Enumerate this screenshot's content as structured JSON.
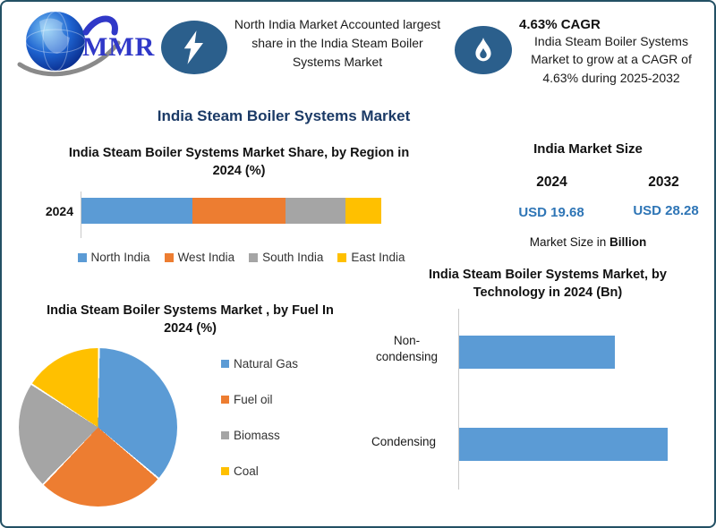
{
  "header": {
    "logo_text": "MMR",
    "highlight1": {
      "icon": "lightning-icon",
      "text": "North India Market Accounted largest share in the India Steam Boiler Systems Market"
    },
    "highlight2": {
      "icon": "flame-icon",
      "title": "4.63% CAGR",
      "text": "India Steam Boiler Systems Market to grow at a CAGR of 4.63% during 2025-2032"
    }
  },
  "main_title": "India Steam Boiler Systems Market",
  "market_size": {
    "title": "India Market Size",
    "col1": {
      "year": "2024",
      "value": "USD 19.68"
    },
    "col2": {
      "year": "2032",
      "value": "USD 28.28"
    },
    "caption_prefix": "Market Size in ",
    "caption_bold": "Billion"
  },
  "colors": {
    "series": [
      "#5B9BD5",
      "#ED7D31",
      "#A5A5A5",
      "#FFC000"
    ],
    "badge_blue": "#2B5F8C",
    "value_blue": "#2E75B6",
    "title_navy": "#1B3A66",
    "border": "#235064",
    "logo_blue": "#3038C8"
  },
  "chart_data": [
    {
      "type": "bar",
      "subtype": "stacked-horizontal",
      "title": "India Steam Boiler Systems Market Share, by Region in 2024 (%)",
      "categories": [
        "2024"
      ],
      "series": [
        {
          "name": "North India",
          "values": [
            37
          ]
        },
        {
          "name": "West India",
          "values": [
            31
          ]
        },
        {
          "name": "South India",
          "values": [
            20
          ]
        },
        {
          "name": "East India",
          "values": [
            12
          ]
        }
      ],
      "unit": "%",
      "xlim": [
        0,
        100
      ],
      "grid": false,
      "legend_position": "bottom"
    },
    {
      "type": "pie",
      "title": "India Steam Boiler Systems Market , by Fuel In 2024 (%)",
      "labels": [
        "Natural Gas",
        "Fuel oil",
        "Biomass",
        "Coal"
      ],
      "values": [
        36,
        26,
        22,
        16
      ],
      "unit": "%",
      "start_angle_deg": 0,
      "legend_position": "right"
    },
    {
      "type": "bar",
      "subtype": "horizontal",
      "title": "India Steam Boiler Systems Market, by Technology in 2024 (Bn)",
      "categories": [
        "Non-condensing",
        "Condensing"
      ],
      "values": [
        8.4,
        11.3
      ],
      "unit": "Bn",
      "xlim": [
        0,
        12.2
      ],
      "grid": false
    }
  ]
}
